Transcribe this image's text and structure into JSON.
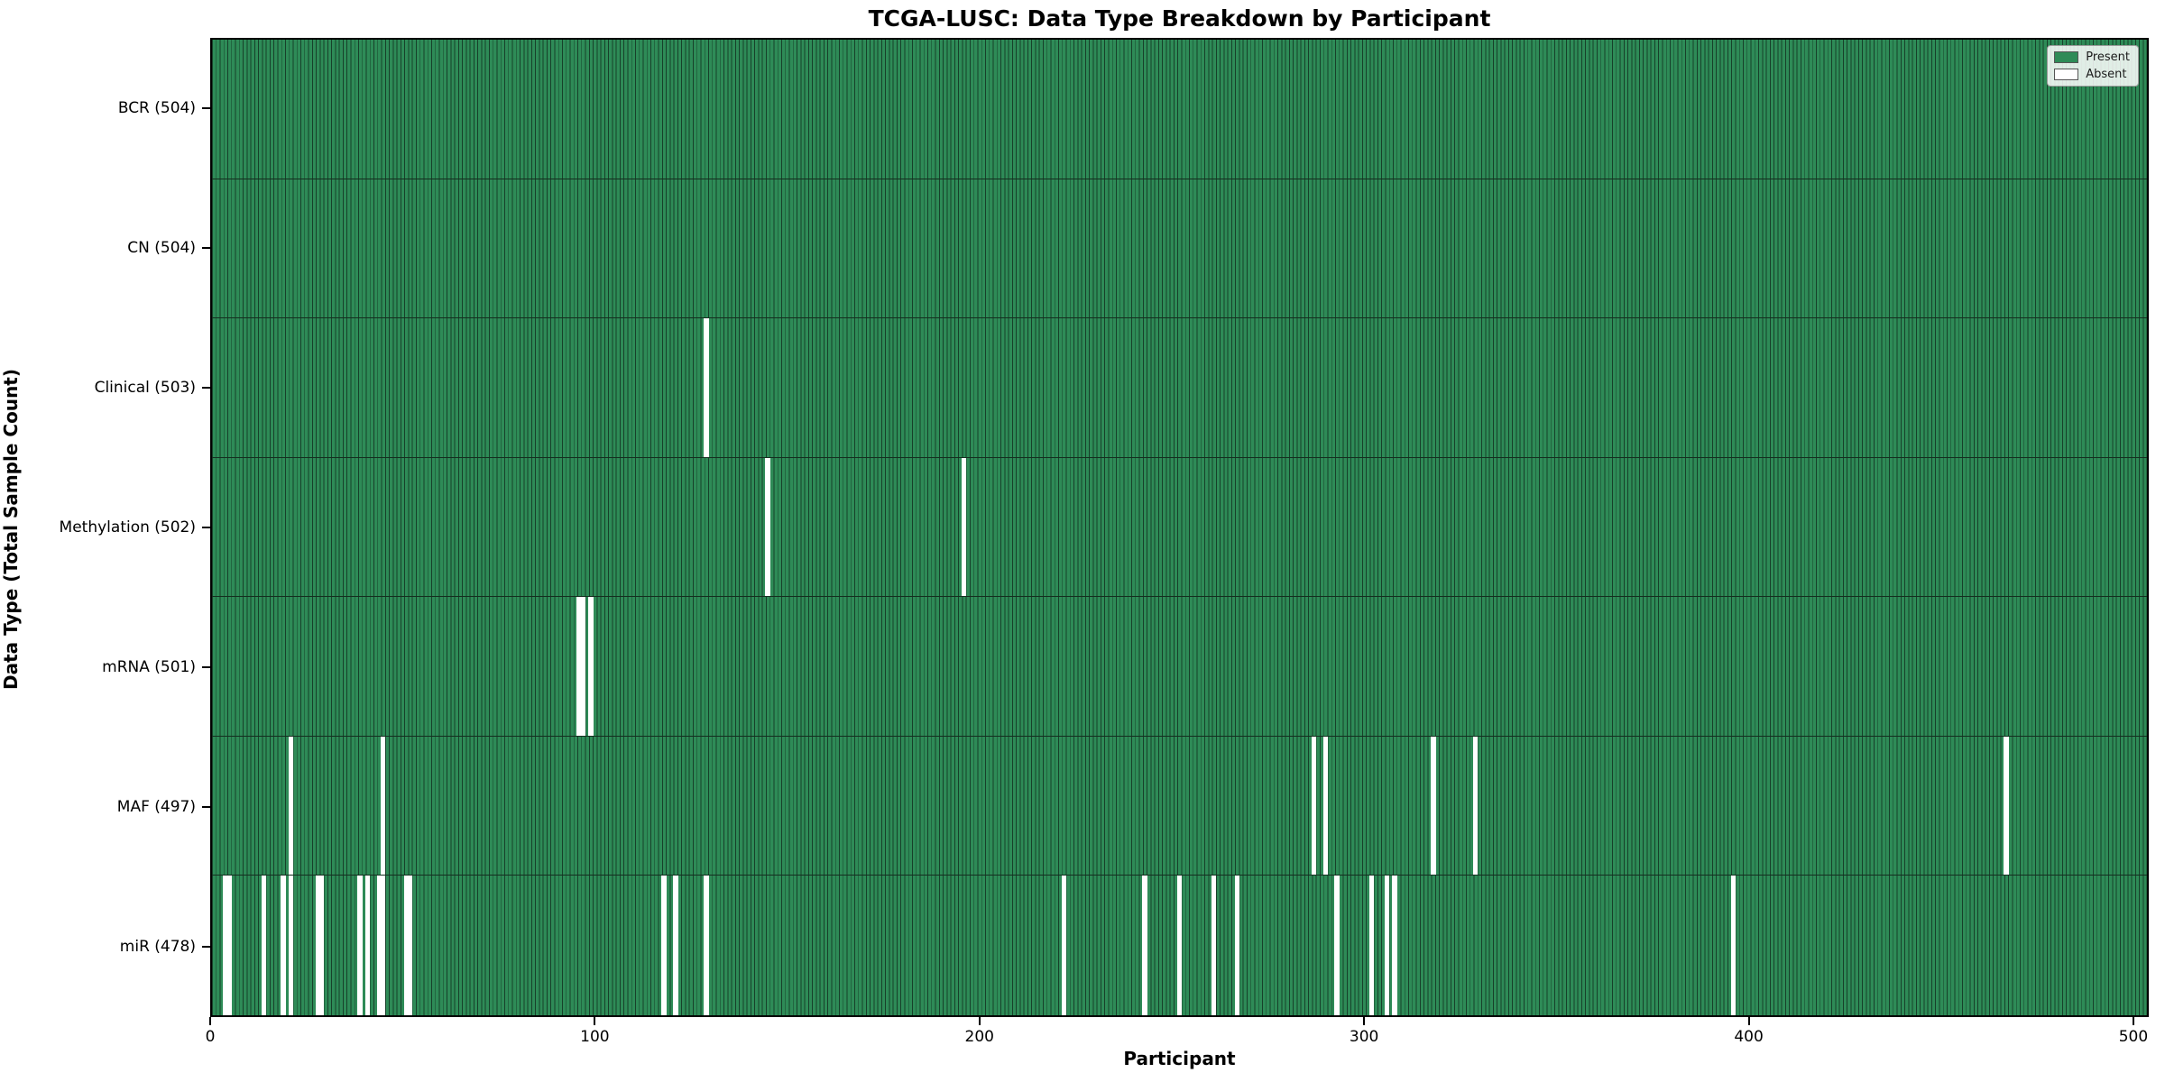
{
  "title": "TCGA-LUSC: Data Type Breakdown by Participant",
  "x_axis": {
    "label": "Participant",
    "ticks": [
      0,
      100,
      200,
      300,
      400,
      500
    ]
  },
  "y_axis": {
    "label": "Data Type (Total Sample Count)"
  },
  "legend": {
    "present_label": "Present",
    "absent_label": "Absent"
  },
  "colors": {
    "present": "#2e8b57",
    "absent": "#ffffff",
    "bar_edge": "#17402a",
    "spine": "#000000"
  },
  "chart_data": {
    "type": "heatmap",
    "title": "TCGA-LUSC: Data Type Breakdown by Participant",
    "xlabel": "Participant",
    "ylabel": "Data Type (Total Sample Count)",
    "legend_entries": [
      "Present",
      "Absent"
    ],
    "legend_position": "upper right",
    "x_range": [
      0,
      504
    ],
    "x_ticks": [
      0,
      100,
      200,
      300,
      400,
      500
    ],
    "n_participants": 504,
    "rows": [
      {
        "name": "BCR",
        "label": "BCR (504)",
        "present_count": 504,
        "absent_participants": []
      },
      {
        "name": "CN",
        "label": "CN (504)",
        "present_count": 504,
        "absent_participants": []
      },
      {
        "name": "Clinical",
        "label": "Clinical (503)",
        "present_count": 503,
        "absent_participants": [
          128
        ]
      },
      {
        "name": "Methylation",
        "label": "Methylation (502)",
        "present_count": 502,
        "absent_participants": [
          144,
          195
        ]
      },
      {
        "name": "mRNA",
        "label": "mRNA (501)",
        "present_count": 501,
        "absent_participants": [
          95,
          96,
          98
        ]
      },
      {
        "name": "MAF",
        "label": "MAF (497)",
        "present_count": 497,
        "absent_participants": [
          20,
          44,
          286,
          289,
          317,
          328,
          466
        ]
      },
      {
        "name": "miR",
        "label": "miR (478)",
        "present_count": 478,
        "absent_participants": [
          3,
          4,
          13,
          18,
          20,
          27,
          28,
          38,
          40,
          43,
          44,
          50,
          51,
          117,
          120,
          128,
          221,
          242,
          251,
          260,
          266,
          292,
          301,
          305,
          307,
          395
        ]
      }
    ]
  }
}
